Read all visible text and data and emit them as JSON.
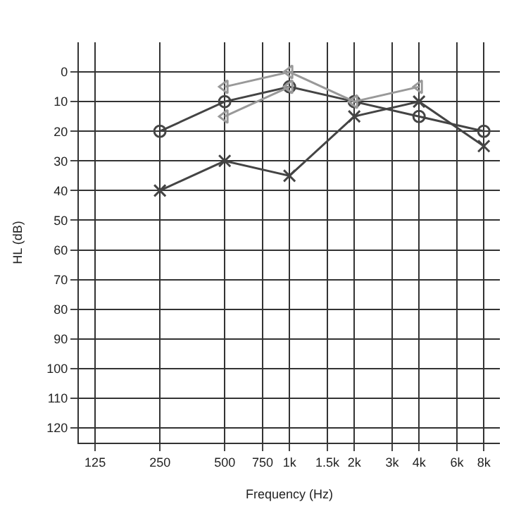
{
  "chart_data": {
    "type": "line",
    "xlabel": "Frequency (Hz)",
    "ylabel": "HL (dB)",
    "log": "x",
    "xlim": [
      105,
      9500
    ],
    "ylim": [
      125,
      -10
    ],
    "xticks": [
      {
        "value": 125,
        "label": "125"
      },
      {
        "value": 250,
        "label": "250"
      },
      {
        "value": 500,
        "label": "500"
      },
      {
        "value": 750,
        "label": "750"
      },
      {
        "value": 1000,
        "label": "1k"
      },
      {
        "value": 1500,
        "label": "1.5k"
      },
      {
        "value": 2000,
        "label": "2k"
      },
      {
        "value": 3000,
        "label": "3k"
      },
      {
        "value": 4000,
        "label": "4k"
      },
      {
        "value": 6000,
        "label": "6k"
      },
      {
        "value": 8000,
        "label": "8k"
      }
    ],
    "yticks": [
      0,
      10,
      20,
      30,
      40,
      50,
      60,
      70,
      80,
      90,
      100,
      110,
      120
    ],
    "grid": true,
    "legend": false,
    "series": [
      {
        "color": "#444444",
        "marker": "circle",
        "x": [
          250,
          500,
          1000,
          2000,
          4000,
          8000
        ],
        "values": [
          20,
          10,
          5,
          10,
          15,
          20
        ]
      },
      {
        "color": "#999999",
        "marker": "triangle",
        "x": [
          500,
          1000,
          2000,
          4000
        ],
        "values": [
          5,
          0,
          10,
          5
        ]
      },
      {
        "color": "#444444",
        "marker": "cross",
        "x": [
          250,
          500,
          1000,
          2000,
          4000,
          8000
        ],
        "values": [
          40,
          30,
          35,
          15,
          10,
          25
        ]
      },
      {
        "color": "#999999",
        "marker": "triangle",
        "x": [
          500,
          1000
        ],
        "values": [
          15,
          5
        ]
      }
    ]
  }
}
